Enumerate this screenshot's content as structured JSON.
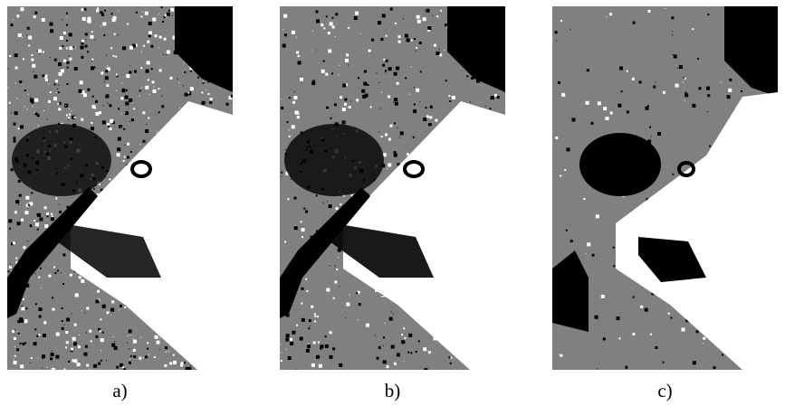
{
  "figure": {
    "panels": [
      {
        "id": "a",
        "caption": "a)",
        "noise": 0.6
      },
      {
        "id": "b",
        "caption": "b)",
        "noise": 0.35
      },
      {
        "id": "c",
        "caption": "c)",
        "noise": 0.1
      }
    ],
    "colors": {
      "black": "#000000",
      "gray": "#808080",
      "white": "#ffffff"
    }
  }
}
